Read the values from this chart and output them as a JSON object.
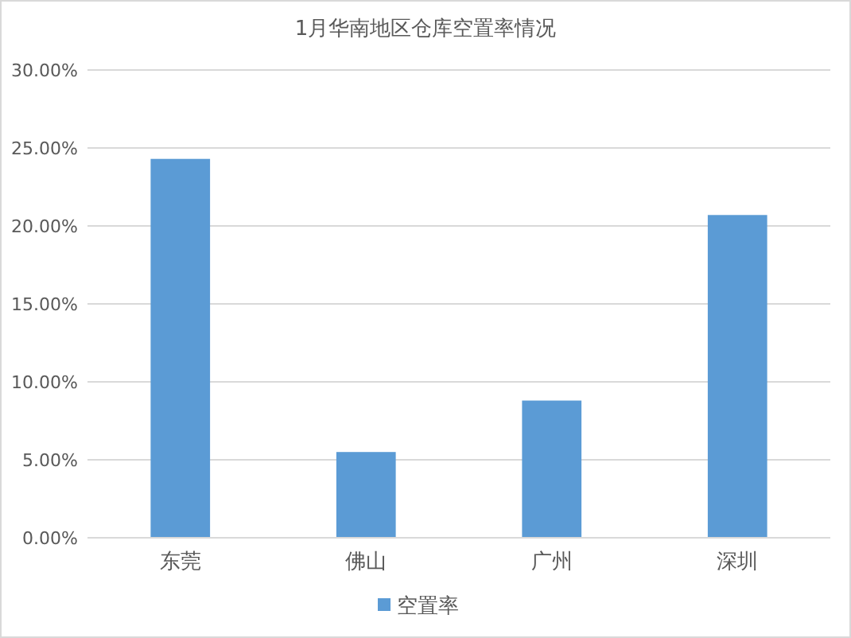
{
  "chart_data": {
    "type": "bar",
    "title": "1月华南地区仓库空置率情况",
    "categories": [
      "东莞",
      "佛山",
      "广州",
      "深圳"
    ],
    "series": [
      {
        "name": "空置率",
        "color": "#5b9bd5",
        "values": [
          24.3,
          5.5,
          8.8,
          20.7
        ]
      }
    ],
    "ylim": [
      0,
      30
    ],
    "yticks": [
      {
        "value": 0,
        "label": "0.00%"
      },
      {
        "value": 5,
        "label": "5.00%"
      },
      {
        "value": 10,
        "label": "10.00%"
      },
      {
        "value": 15,
        "label": "15.00%"
      },
      {
        "value": 20,
        "label": "20.00%"
      },
      {
        "value": 25,
        "label": "25.00%"
      },
      {
        "value": 30,
        "label": "30.00%"
      }
    ],
    "grid": "y",
    "legend": "bottom"
  }
}
